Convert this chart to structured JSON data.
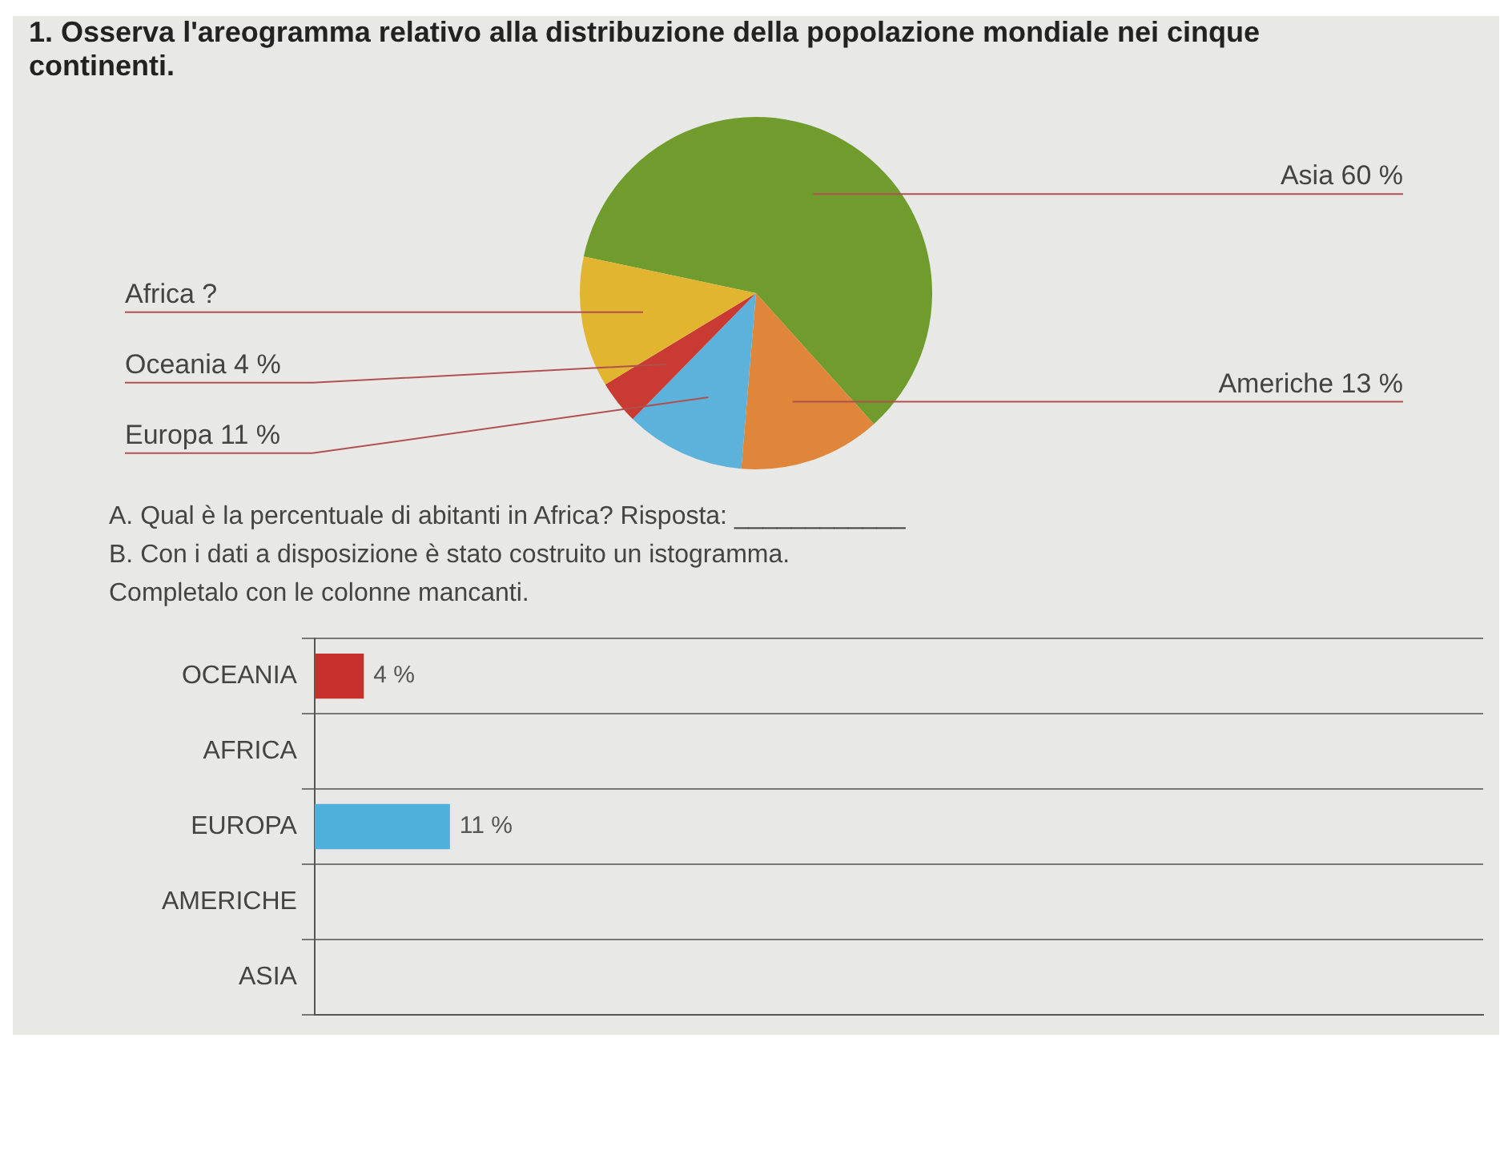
{
  "chart_data": [
    {
      "type": "pie",
      "title": "1. Osserva l'areogramma relativo alla distribuzione della popolazione mondiale nei cinque continenti.",
      "categories": [
        "Asia 60 %",
        "Americhe 13 %",
        "Europa 11 %",
        "Oceania 4 %",
        "Africa ?"
      ],
      "values": [
        60,
        13,
        11,
        4,
        12
      ],
      "colors": [
        "#6f9c2c",
        "#e0863a",
        "#5cb2da",
        "#c83a32",
        "#e2b531"
      ]
    },
    {
      "type": "bar",
      "orientation": "horizontal",
      "annotations": [
        "A. Qual è la percentuale di abitanti in Africa? Risposta: ____________",
        "B. Con i dati a disposizione è stato costruito un istogramma.",
        "Completalo con le colonne mancanti."
      ],
      "categories": [
        "OCEANIA",
        "AFRICA",
        "EUROPA",
        "AMERICHE",
        "ASIA"
      ],
      "values": [
        4,
        null,
        11,
        null,
        null
      ],
      "colors": [
        "#c8302e",
        "#888888",
        "#4fb0dc",
        "#888888",
        "#888888"
      ],
      "value_labels": [
        "4 %",
        null,
        "11 %",
        null,
        null
      ],
      "xlim": [
        0,
        95
      ],
      "tick_labels": "y",
      "grid": "y"
    }
  ]
}
